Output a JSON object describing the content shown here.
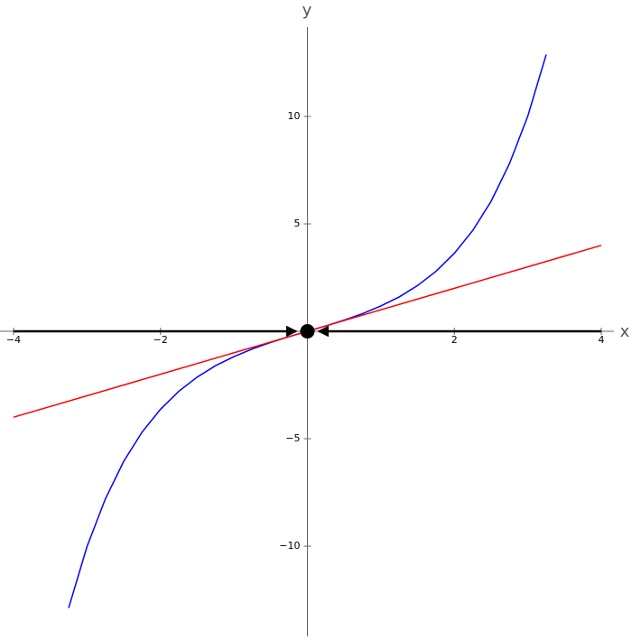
{
  "chart_data": {
    "type": "line",
    "xlabel": "x",
    "ylabel": "y",
    "xlim": [
      -4,
      4
    ],
    "ylim": [
      -14.2,
      14.2
    ],
    "xticks": [
      {
        "value": -4,
        "label": "−4"
      },
      {
        "value": -2,
        "label": "−2"
      },
      2,
      4
    ],
    "yticks": [
      {
        "value": -10,
        "label": "−10"
      },
      {
        "value": -5,
        "label": "−5"
      },
      5,
      10
    ],
    "series": [
      {
        "color": "#0000ff",
        "x": [
          -3.25,
          -3,
          -2.75,
          -2.5,
          -2.25,
          -2,
          -1.75,
          -1.5,
          -1.25,
          -1,
          -0.75,
          -0.5,
          -0.25,
          0,
          0.25,
          0.5,
          0.75,
          1,
          1.25,
          1.5,
          1.75,
          2,
          2.25,
          2.5,
          2.75,
          3,
          3.25
        ],
        "values": [
          -12.88,
          -10.02,
          -7.8,
          -6.05,
          -4.69,
          -3.63,
          -2.79,
          -2.13,
          -1.6,
          -1.18,
          -0.82,
          -0.52,
          -0.25,
          0,
          0.25,
          0.52,
          0.82,
          1.18,
          1.6,
          2.13,
          2.79,
          3.63,
          4.69,
          6.05,
          7.8,
          10.02,
          12.88
        ]
      },
      {
        "color": "#ff0000",
        "x": [
          -4,
          4
        ],
        "values": [
          -4,
          4
        ]
      }
    ],
    "arrows": [
      {
        "color": "#000000",
        "x": [
          -4,
          -0.15
        ],
        "values": [
          0,
          0
        ]
      },
      {
        "color": "#000000",
        "x": [
          4,
          0.15
        ],
        "values": [
          0,
          0
        ]
      }
    ],
    "points": [
      {
        "color": "#000000",
        "x": 0,
        "value": 0
      }
    ]
  }
}
